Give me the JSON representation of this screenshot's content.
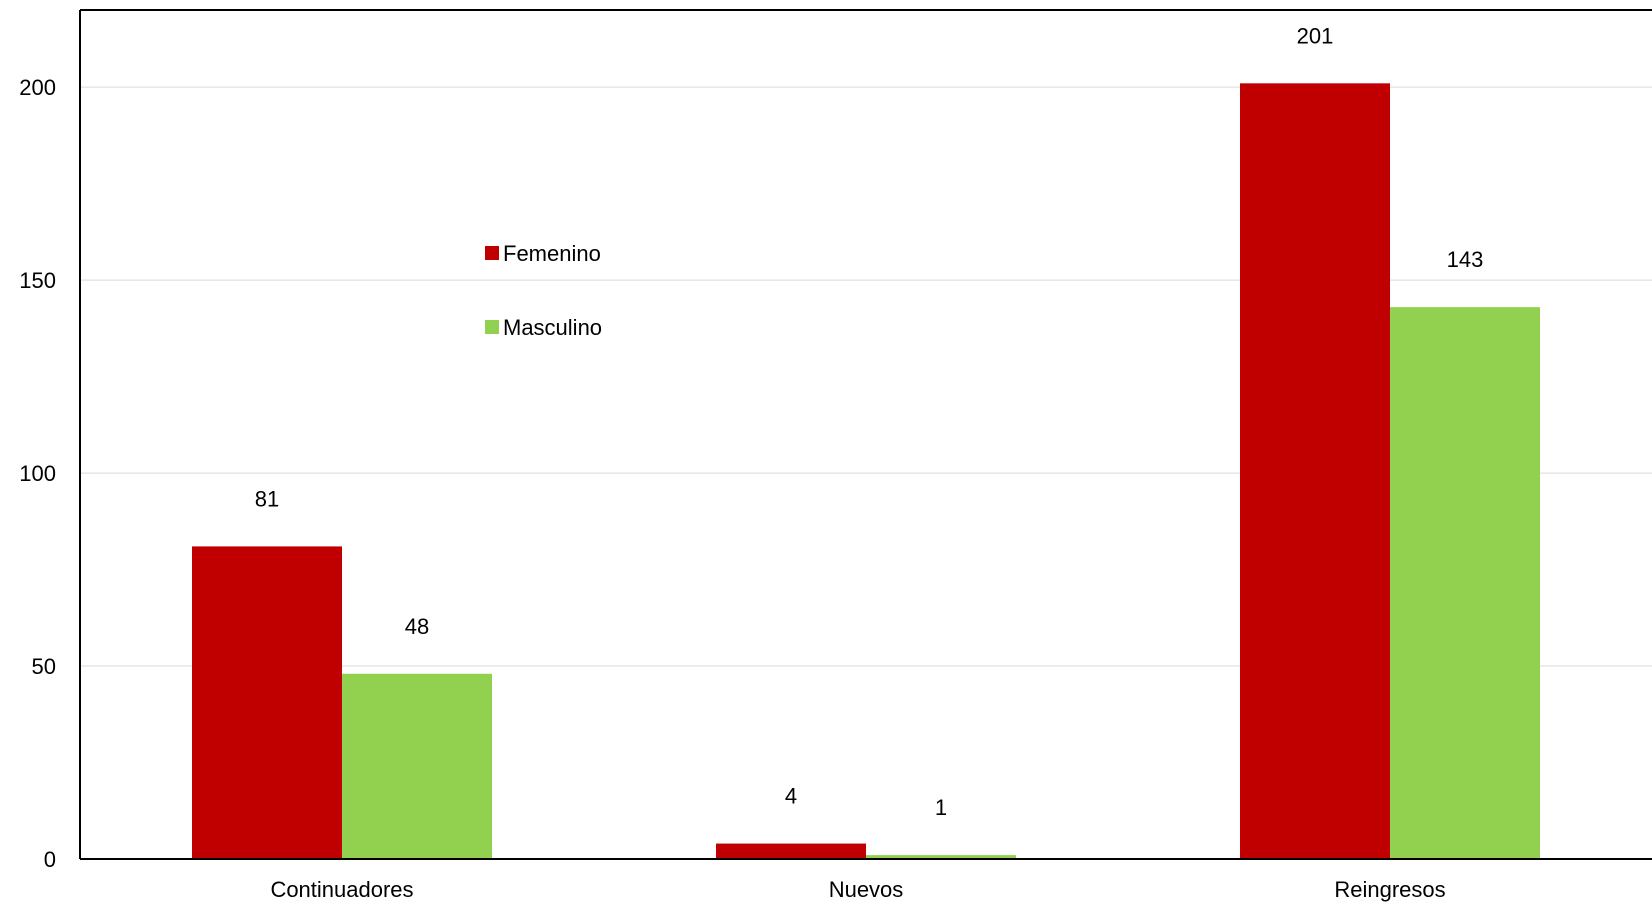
{
  "chart_data": {
    "type": "bar",
    "title": "",
    "xlabel": "",
    "ylabel": "",
    "categories": [
      "Continuadores",
      "Nuevos",
      "Reingresos"
    ],
    "series": [
      {
        "name": "Femenino",
        "values": [
          81,
          4,
          201
        ],
        "color": "#c00000"
      },
      {
        "name": "Masculino",
        "values": [
          48,
          1,
          143
        ],
        "color": "#92d050"
      }
    ],
    "ylim": [
      0,
      220
    ],
    "yticks": [
      0,
      50,
      100,
      150,
      200
    ],
    "grid": true,
    "legend_position": "upper-left-inside",
    "data_labels": true
  }
}
